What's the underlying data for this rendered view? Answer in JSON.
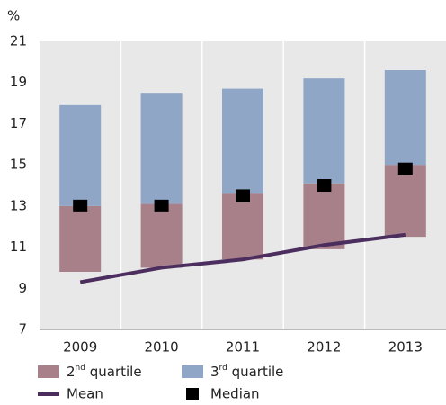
{
  "chart_data": {
    "type": "floating_bar",
    "y_label": "%",
    "categories": [
      "2009",
      "2010",
      "2011",
      "2012",
      "2013"
    ],
    "series": [
      {
        "name": "2nd quartile",
        "color": "#a8808a",
        "kind": "range",
        "values": [
          [
            9.8,
            13.0
          ],
          [
            10.0,
            13.1
          ],
          [
            10.4,
            13.6
          ],
          [
            10.9,
            14.1
          ],
          [
            11.5,
            15.0
          ]
        ]
      },
      {
        "name": "3rd quartile",
        "color": "#8fa6c6",
        "kind": "range",
        "values": [
          [
            13.0,
            17.9
          ],
          [
            13.1,
            18.5
          ],
          [
            13.6,
            18.7
          ],
          [
            14.1,
            19.2
          ],
          [
            15.0,
            19.6
          ]
        ]
      },
      {
        "name": "Mean",
        "color": "#4b2d5e",
        "kind": "line",
        "values": [
          9.3,
          10.0,
          10.4,
          11.1,
          11.6
        ]
      },
      {
        "name": "Median",
        "color": "#000000",
        "kind": "marker",
        "values": [
          13.0,
          13.0,
          13.5,
          14.0,
          14.8
        ]
      }
    ],
    "ylim": [
      7,
      21
    ],
    "yticks": [
      7,
      9,
      11,
      13,
      15,
      17,
      19,
      21
    ]
  }
}
